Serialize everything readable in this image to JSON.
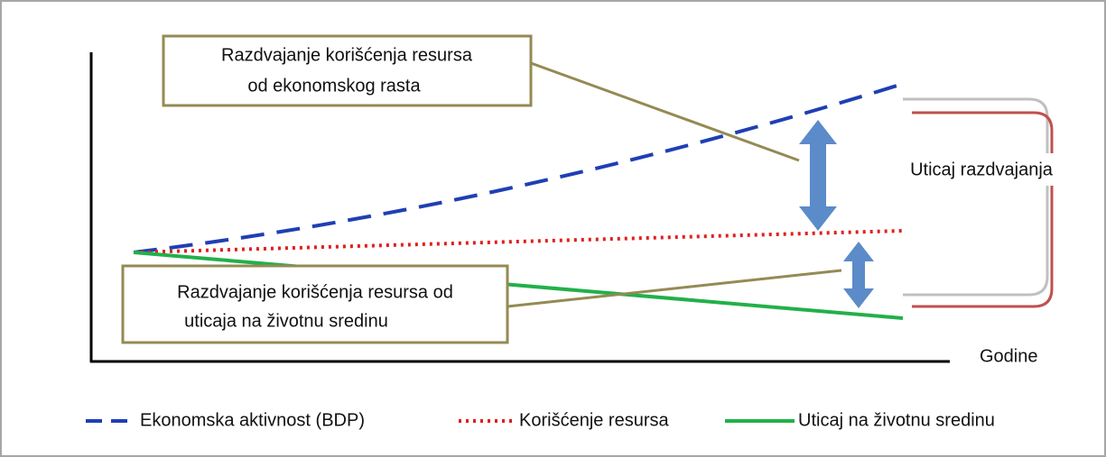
{
  "callouts": [
    {
      "lines": [
        "Razdvajanje  korišćenja resursa",
        "od ekonomskog rasta"
      ]
    },
    {
      "lines": [
        "Razdvajanje  korišćenja resursa od",
        "uticaja na životnu sredinu"
      ]
    }
  ],
  "bracket_label": "Uticaj razdvajanja",
  "x_axis_label": "Godine",
  "legend": [
    "Ekonomska aktivnost (BDP)",
    "Korišćenje resursa",
    "Uticaj na životnu sredinu"
  ]
}
